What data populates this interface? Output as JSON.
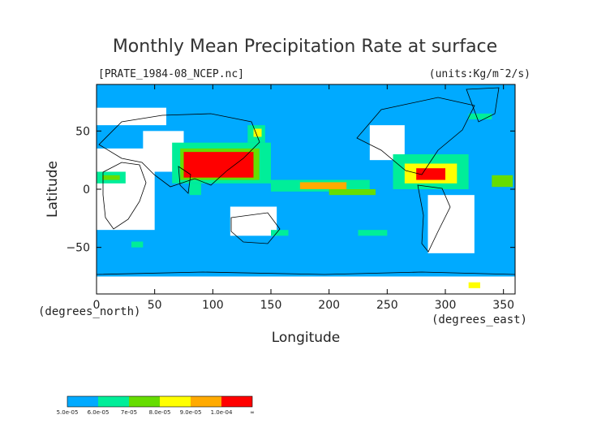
{
  "chart_data": {
    "type": "heatmap",
    "title": "Monthly Mean Precipitation Rate at surface",
    "file_label": "[PRATE_1984-08_NCEP.nc]",
    "units_label": "(units:Kg/m¯2/s)",
    "xlabel": "Longitude",
    "ylabel": "Latitude",
    "x_unit_label": "(degrees_east)",
    "y_unit_label": "(degrees_north)",
    "xlim": [
      0,
      360
    ],
    "ylim": [
      -90,
      90
    ],
    "x_ticks": [
      0,
      50,
      100,
      150,
      200,
      250,
      300,
      350
    ],
    "y_ticks": [
      50,
      0,
      -50
    ],
    "x_tick_labels": [
      "0",
      "50",
      "100",
      "150",
      "200",
      "250",
      "300",
      "350"
    ],
    "y_tick_labels": [
      "50",
      "0",
      "−50"
    ],
    "grid": false,
    "legend_position": "bottom-left",
    "colorbar": {
      "labels": [
        "5.0e-05",
        "6.0e-05",
        "7e-05",
        "8.0e-05",
        "9.0e-05",
        "1.0e-04",
        "∞"
      ],
      "colors": [
        "#00aaff",
        "#00ee99",
        "#66dd00",
        "#ffff00",
        "#ffaa00",
        "#ff0000"
      ]
    },
    "below_min_color": "#ffffff",
    "regions": [
      {
        "level": 1,
        "lon": [
          65,
          150
        ],
        "lat": [
          5,
          40
        ]
      },
      {
        "level": 2,
        "lon": [
          72,
          140
        ],
        "lat": [
          8,
          35
        ]
      },
      {
        "level": 5,
        "lon": [
          75,
          135
        ],
        "lat": [
          10,
          32
        ]
      },
      {
        "level": 1,
        "lon": [
          130,
          145
        ],
        "lat": [
          40,
          55
        ]
      },
      {
        "level": 3,
        "lon": [
          135,
          142
        ],
        "lat": [
          45,
          52
        ]
      },
      {
        "level": 1,
        "lon": [
          255,
          320
        ],
        "lat": [
          0,
          30
        ]
      },
      {
        "level": 3,
        "lon": [
          265,
          310
        ],
        "lat": [
          5,
          22
        ]
      },
      {
        "level": 5,
        "lon": [
          275,
          300
        ],
        "lat": [
          8,
          18
        ]
      },
      {
        "level": 1,
        "lon": [
          150,
          235
        ],
        "lat": [
          -2,
          8
        ]
      },
      {
        "level": 4,
        "lon": [
          175,
          215
        ],
        "lat": [
          0,
          6
        ]
      },
      {
        "level": 1,
        "lon": [
          0,
          25
        ],
        "lat": [
          5,
          15
        ]
      },
      {
        "level": 2,
        "lon": [
          5,
          20
        ],
        "lat": [
          8,
          12
        ]
      },
      {
        "level": 1,
        "lon": [
          80,
          90
        ],
        "lat": [
          -5,
          5
        ]
      },
      {
        "level": 2,
        "lon": [
          200,
          240
        ],
        "lat": [
          -5,
          0
        ]
      },
      {
        "level": 2,
        "lon": [
          340,
          358
        ],
        "lat": [
          2,
          12
        ]
      },
      {
        "level": 1,
        "lon": [
          320,
          340
        ],
        "lat": [
          60,
          65
        ]
      },
      {
        "level": 1,
        "lon": [
          225,
          250
        ],
        "lat": [
          -40,
          -35
        ]
      },
      {
        "level": 1,
        "lon": [
          150,
          165
        ],
        "lat": [
          -40,
          -35
        ]
      },
      {
        "level": 1,
        "lon": [
          30,
          40
        ],
        "lat": [
          -50,
          -45
        ]
      },
      {
        "level": 3,
        "lon": [
          320,
          330
        ],
        "lat": [
          -85,
          -80
        ]
      }
    ],
    "no_data_regions": [
      {
        "lon": [
          0,
          50
        ],
        "lat": [
          -35,
          35
        ]
      },
      {
        "lon": [
          40,
          75
        ],
        "lat": [
          15,
          50
        ]
      },
      {
        "lon": [
          0,
          60
        ],
        "lat": [
          55,
          70
        ]
      },
      {
        "lon": [
          235,
          265
        ],
        "lat": [
          25,
          55
        ]
      },
      {
        "lon": [
          285,
          325
        ],
        "lat": [
          -55,
          -5
        ]
      },
      {
        "lon": [
          115,
          155
        ],
        "lat": [
          -40,
          -15
        ]
      },
      {
        "lon": [
          0,
          360
        ],
        "lat": [
          -90,
          -75
        ]
      }
    ]
  }
}
